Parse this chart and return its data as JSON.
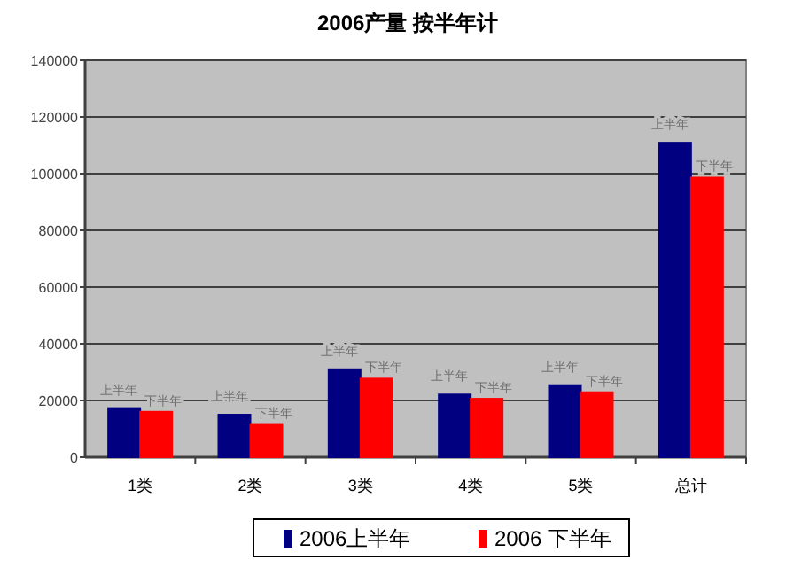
{
  "chart_data": {
    "type": "bar",
    "title": "2006产量 按半年计",
    "categories": [
      "1类",
      "2类",
      "3类",
      "4类",
      "5类",
      "总计"
    ],
    "series": [
      {
        "name": "2006上半年",
        "color": "#000080",
        "values": [
          17300,
          15000,
          31000,
          22100,
          25400,
          110900
        ],
        "value_labels": [
          "上半年",
          "上半年",
          "上半年",
          "上半年",
          "上半年",
          "上半年"
        ]
      },
      {
        "name": "2006 下半年",
        "color": "#ff0000",
        "values": [
          16000,
          11700,
          27700,
          20600,
          22900,
          98600
        ],
        "value_labels": [
          "下半年",
          "下半年",
          "下半年",
          "下半年",
          "下半年",
          "下半年"
        ]
      }
    ],
    "ylim": [
      0,
      140000
    ],
    "yticks": [
      0,
      20000,
      40000,
      60000,
      80000,
      100000,
      120000,
      140000
    ],
    "grid": "y",
    "legend": "bottom"
  }
}
